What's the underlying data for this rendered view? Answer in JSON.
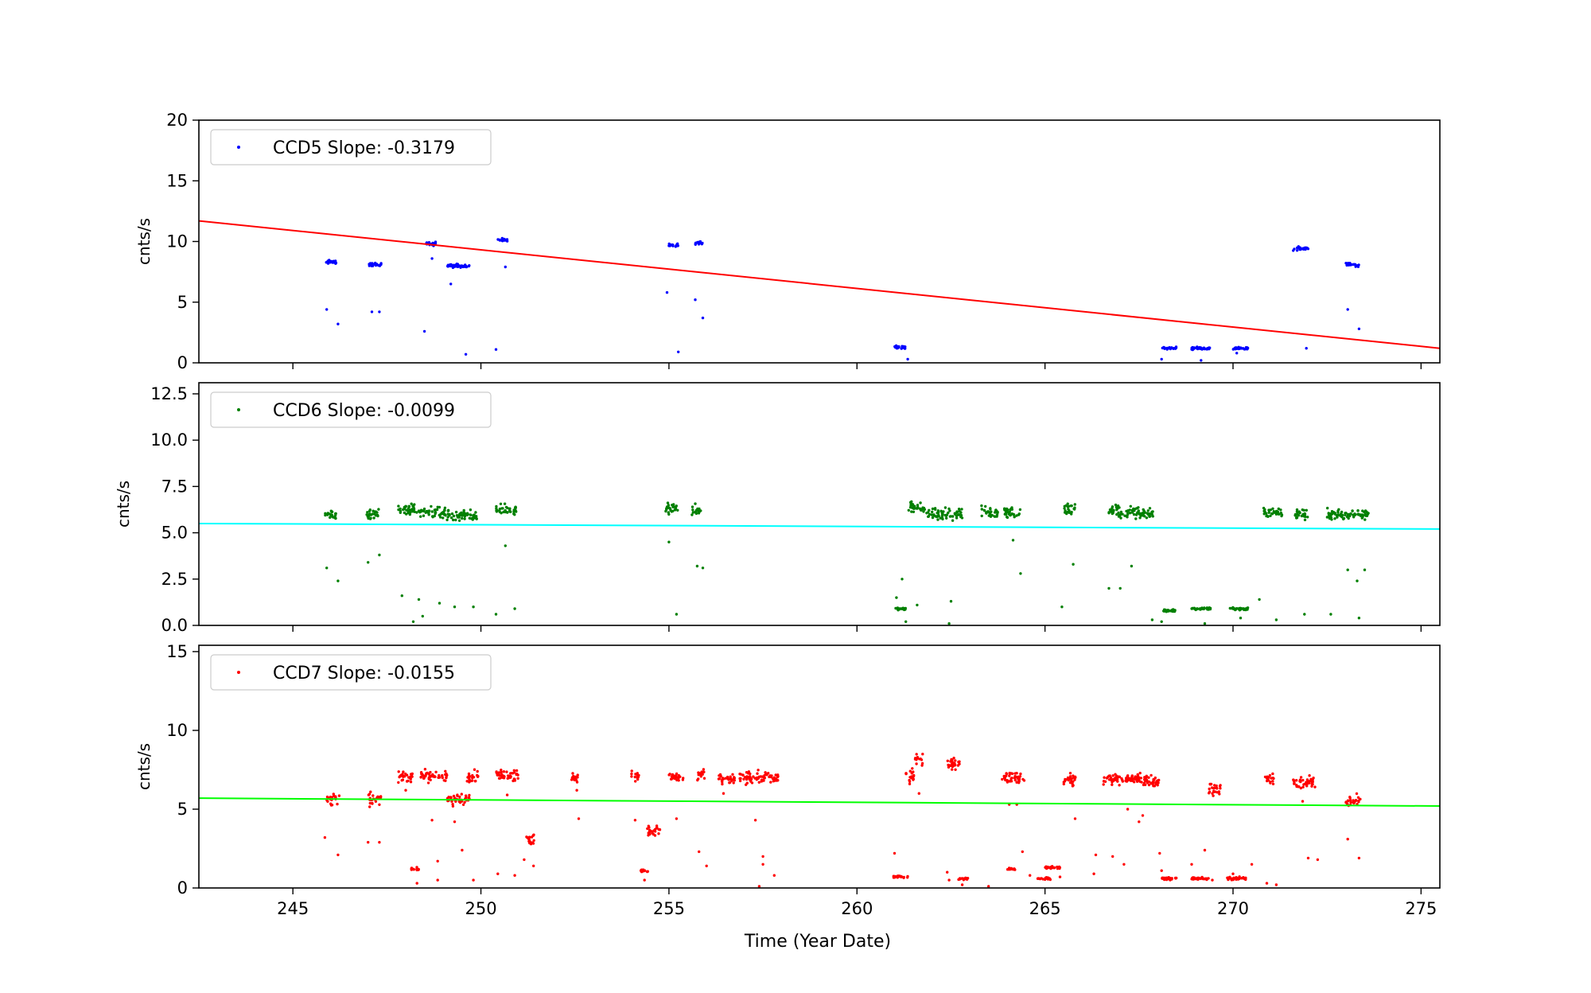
{
  "chart_data": {
    "type": "scatter",
    "xlabel": "Time (Year Date)",
    "xlim": [
      242.5,
      275.5
    ],
    "xticks": [
      245,
      250,
      255,
      260,
      265,
      270,
      275
    ],
    "colors": {
      "ccd5": "#0000ff",
      "ccd6": "#008000",
      "ccd7": "#ff0000",
      "fit5": "#ff0000",
      "fit6": "#00ffff",
      "fit7": "#00ff00"
    },
    "panels": [
      {
        "ylabel": "cnts/s",
        "legend": "CCD5 Slope: -0.3179",
        "ylim": [
          0,
          20
        ],
        "yticks": [
          0,
          5,
          10,
          15,
          20
        ],
        "fit": {
          "y_start": 11.7,
          "y_end": 1.2
        },
        "clusters": [
          [
            245.85,
            246.2,
            8.3
          ],
          [
            247.0,
            247.35,
            8.1
          ],
          [
            248.55,
            248.8,
            9.8
          ],
          [
            249.1,
            249.7,
            8.0
          ],
          [
            250.45,
            250.7,
            10.1
          ],
          [
            255.0,
            255.25,
            9.7
          ],
          [
            255.7,
            255.9,
            9.9
          ],
          [
            261.0,
            261.3,
            1.3
          ],
          [
            268.1,
            268.5,
            1.2
          ],
          [
            268.9,
            269.4,
            1.2
          ],
          [
            270.0,
            270.4,
            1.2
          ],
          [
            271.6,
            272.0,
            9.4
          ],
          [
            273.0,
            273.35,
            8.1
          ]
        ],
        "outliers": [
          [
            245.9,
            4.4
          ],
          [
            246.2,
            3.2
          ],
          [
            247.1,
            4.2
          ],
          [
            247.3,
            4.2
          ],
          [
            248.5,
            2.6
          ],
          [
            248.7,
            8.6
          ],
          [
            249.2,
            6.5
          ],
          [
            249.6,
            0.7
          ],
          [
            250.4,
            1.1
          ],
          [
            250.65,
            7.9
          ],
          [
            254.95,
            5.8
          ],
          [
            255.25,
            0.9
          ],
          [
            255.7,
            5.2
          ],
          [
            255.9,
            3.7
          ],
          [
            261.35,
            0.3
          ],
          [
            268.1,
            0.3
          ],
          [
            269.15,
            0.2
          ],
          [
            270.1,
            0.8
          ],
          [
            271.95,
            1.2
          ],
          [
            273.05,
            4.4
          ],
          [
            273.35,
            2.8
          ]
        ]
      },
      {
        "ylabel": "cnts/s",
        "legend": "CCD6 Slope: -0.0099",
        "ylim": [
          0,
          13.1
        ],
        "yticks": [
          0.0,
          2.5,
          5.0,
          7.5,
          10.0,
          12.5
        ],
        "fit": {
          "y_start": 5.5,
          "y_end": 5.2
        },
        "clusters": [
          [
            245.85,
            246.15,
            6.0
          ],
          [
            246.95,
            247.3,
            6.0
          ],
          [
            247.8,
            248.3,
            6.3
          ],
          [
            248.35,
            249.05,
            6.1
          ],
          [
            249.05,
            249.9,
            5.9
          ],
          [
            250.4,
            250.95,
            6.2
          ],
          [
            254.9,
            255.25,
            6.3
          ],
          [
            255.6,
            255.85,
            6.2
          ],
          [
            261.0,
            261.3,
            0.9
          ],
          [
            261.35,
            261.8,
            6.4
          ],
          [
            261.85,
            262.8,
            6.0
          ],
          [
            263.3,
            263.75,
            6.1
          ],
          [
            263.9,
            264.35,
            6.1
          ],
          [
            265.5,
            265.8,
            6.3
          ],
          [
            266.7,
            267.0,
            6.2
          ],
          [
            266.95,
            267.9,
            6.1
          ],
          [
            268.1,
            268.5,
            0.8
          ],
          [
            268.9,
            269.4,
            0.9
          ],
          [
            269.9,
            270.4,
            0.9
          ],
          [
            270.8,
            271.3,
            6.1
          ],
          [
            271.65,
            272.0,
            6.0
          ],
          [
            272.5,
            273.6,
            6.0
          ]
        ],
        "outliers": [
          [
            245.9,
            3.1
          ],
          [
            246.2,
            2.4
          ],
          [
            247.0,
            3.4
          ],
          [
            247.3,
            3.8
          ],
          [
            247.9,
            1.6
          ],
          [
            248.2,
            0.2
          ],
          [
            248.35,
            1.4
          ],
          [
            248.45,
            0.5
          ],
          [
            248.9,
            1.2
          ],
          [
            249.3,
            1.0
          ],
          [
            249.8,
            1.0
          ],
          [
            250.4,
            0.6
          ],
          [
            250.65,
            4.3
          ],
          [
            250.9,
            0.9
          ],
          [
            255.0,
            4.5
          ],
          [
            255.2,
            0.6
          ],
          [
            255.75,
            3.2
          ],
          [
            255.9,
            3.1
          ],
          [
            261.05,
            1.5
          ],
          [
            261.2,
            2.5
          ],
          [
            261.3,
            0.2
          ],
          [
            261.6,
            1.1
          ],
          [
            262.45,
            0.1
          ],
          [
            262.5,
            1.3
          ],
          [
            264.15,
            4.6
          ],
          [
            264.35,
            2.8
          ],
          [
            265.45,
            1.0
          ],
          [
            265.75,
            3.3
          ],
          [
            266.7,
            2.0
          ],
          [
            267.0,
            2.0
          ],
          [
            267.3,
            3.2
          ],
          [
            267.85,
            0.3
          ],
          [
            268.1,
            0.2
          ],
          [
            269.25,
            0.1
          ],
          [
            270.2,
            0.4
          ],
          [
            270.7,
            1.4
          ],
          [
            271.15,
            0.3
          ],
          [
            271.9,
            0.6
          ],
          [
            272.6,
            0.6
          ],
          [
            273.05,
            3.0
          ],
          [
            273.3,
            2.4
          ],
          [
            273.35,
            0.4
          ],
          [
            273.5,
            3.0
          ]
        ]
      },
      {
        "ylabel": "cnts/s",
        "legend": "CCD7 Slope: -0.0155",
        "ylim": [
          0,
          15.4
        ],
        "yticks": [
          0,
          5,
          10,
          15
        ],
        "fit": {
          "y_start": 5.7,
          "y_end": 5.2
        },
        "clusters": [
          [
            245.9,
            246.3,
            5.6
          ],
          [
            246.95,
            247.35,
            5.6
          ],
          [
            247.8,
            248.2,
            7.1
          ],
          [
            248.15,
            248.35,
            1.2
          ],
          [
            248.4,
            249.1,
            7.1
          ],
          [
            249.1,
            249.7,
            5.6
          ],
          [
            249.6,
            249.95,
            7.1
          ],
          [
            250.4,
            251.0,
            7.2
          ],
          [
            251.2,
            251.45,
            3.1
          ],
          [
            252.4,
            252.6,
            7.0
          ],
          [
            254.0,
            254.2,
            7.1
          ],
          [
            254.25,
            254.45,
            1.1
          ],
          [
            254.4,
            254.8,
            3.6
          ],
          [
            255.0,
            255.4,
            7.0
          ],
          [
            255.75,
            255.95,
            7.1
          ],
          [
            256.3,
            256.75,
            6.9
          ],
          [
            256.85,
            257.9,
            7.0
          ],
          [
            260.95,
            261.35,
            0.7
          ],
          [
            261.3,
            261.55,
            7.1
          ],
          [
            261.55,
            261.75,
            8.2
          ],
          [
            262.4,
            262.75,
            7.9
          ],
          [
            262.7,
            262.95,
            0.6
          ],
          [
            263.85,
            264.3,
            7.0
          ],
          [
            264.2,
            264.45,
            6.9
          ],
          [
            264.0,
            264.2,
            1.2
          ],
          [
            264.8,
            265.15,
            0.6
          ],
          [
            265.0,
            265.4,
            1.3
          ],
          [
            265.5,
            265.85,
            6.9
          ],
          [
            266.55,
            267.55,
            6.9
          ],
          [
            267.35,
            268.05,
            6.8
          ],
          [
            268.1,
            268.5,
            0.6
          ],
          [
            268.9,
            269.35,
            0.6
          ],
          [
            269.35,
            269.7,
            6.3
          ],
          [
            269.85,
            270.35,
            0.6
          ],
          [
            270.85,
            271.1,
            6.9
          ],
          [
            271.6,
            272.2,
            6.7
          ],
          [
            273.0,
            273.4,
            5.5
          ]
        ],
        "outliers": [
          [
            245.85,
            3.2
          ],
          [
            246.2,
            2.1
          ],
          [
            247.0,
            2.9
          ],
          [
            247.3,
            2.9
          ],
          [
            248.0,
            6.2
          ],
          [
            248.3,
            0.3
          ],
          [
            248.7,
            4.3
          ],
          [
            248.85,
            1.7
          ],
          [
            248.85,
            0.5
          ],
          [
            249.3,
            4.2
          ],
          [
            249.5,
            2.4
          ],
          [
            249.8,
            0.5
          ],
          [
            250.45,
            0.9
          ],
          [
            250.7,
            5.9
          ],
          [
            250.9,
            0.8
          ],
          [
            251.15,
            1.8
          ],
          [
            251.4,
            1.4
          ],
          [
            252.6,
            4.4
          ],
          [
            252.55,
            6.2
          ],
          [
            254.1,
            4.3
          ],
          [
            254.35,
            0.5
          ],
          [
            255.2,
            4.4
          ],
          [
            255.8,
            2.3
          ],
          [
            256.0,
            1.4
          ],
          [
            256.45,
            6.0
          ],
          [
            257.3,
            4.3
          ],
          [
            257.4,
            0.1
          ],
          [
            257.5,
            2.0
          ],
          [
            257.5,
            1.5
          ],
          [
            257.8,
            0.8
          ],
          [
            261.0,
            2.2
          ],
          [
            261.4,
            6.6
          ],
          [
            261.65,
            6.0
          ],
          [
            262.4,
            1.0
          ],
          [
            262.45,
            0.5
          ],
          [
            262.8,
            0.2
          ],
          [
            263.5,
            0.1
          ],
          [
            264.05,
            5.3
          ],
          [
            264.25,
            5.3
          ],
          [
            264.4,
            2.3
          ],
          [
            264.6,
            0.8
          ],
          [
            265.4,
            0.7
          ],
          [
            265.8,
            4.4
          ],
          [
            266.3,
            0.9
          ],
          [
            266.35,
            2.1
          ],
          [
            266.8,
            2.0
          ],
          [
            267.1,
            1.5
          ],
          [
            267.2,
            5.0
          ],
          [
            267.5,
            4.2
          ],
          [
            267.6,
            4.6
          ],
          [
            268.05,
            2.2
          ],
          [
            268.1,
            1.1
          ],
          [
            268.9,
            1.5
          ],
          [
            269.25,
            2.4
          ],
          [
            269.45,
            0.5
          ],
          [
            270.0,
            0.9
          ],
          [
            270.5,
            1.5
          ],
          [
            270.9,
            0.3
          ],
          [
            271.15,
            0.2
          ],
          [
            271.85,
            5.5
          ],
          [
            272.0,
            1.9
          ],
          [
            272.25,
            1.8
          ],
          [
            273.05,
            3.1
          ],
          [
            273.35,
            1.9
          ]
        ]
      }
    ]
  }
}
